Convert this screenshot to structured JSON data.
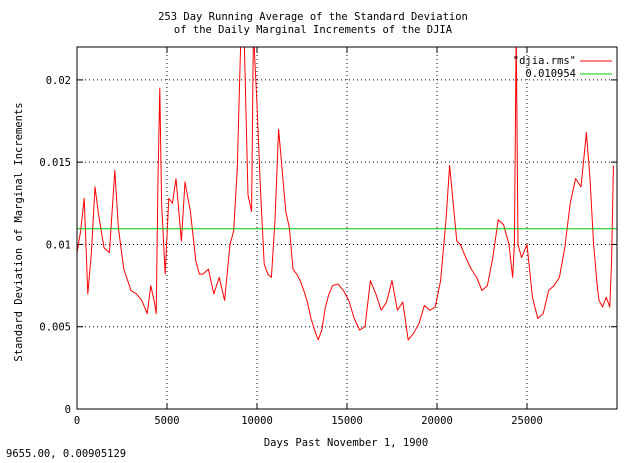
{
  "status_bar": {
    "coordinates": "9655.00,  0.00905129"
  },
  "chart_data": {
    "type": "line",
    "title": [
      "253 Day Running Average of the Standard Deviation",
      "of the Daily Marginal Increments of the DJIA"
    ],
    "xlabel": "Days Past November 1, 1900",
    "ylabel": "Standard Deviation of Marginal Increments",
    "xlim": [
      0,
      30000
    ],
    "ylim": [
      0,
      0.022
    ],
    "x_ticks": [
      0,
      5000,
      10000,
      15000,
      20000,
      25000
    ],
    "x_tick_labels": [
      "0",
      "5000",
      "10000",
      "15000",
      "20000",
      "25000"
    ],
    "y_ticks": [
      0,
      0.005,
      0.01,
      0.015,
      0.02
    ],
    "y_tick_labels": [
      "0",
      "0.005",
      "0.01",
      "0.015",
      "0.02"
    ],
    "grid": true,
    "legend_placement": "top-right",
    "series": [
      {
        "name": "\"djia.rms\"",
        "color": "#ff0000",
        "x": [
          0,
          200,
          400,
          600,
          800,
          1000,
          1200,
          1500,
          1800,
          2100,
          2300,
          2600,
          3000,
          3300,
          3600,
          3900,
          4100,
          4300,
          4400,
          4500,
          4600,
          4700,
          4900,
          5100,
          5300,
          5500,
          5800,
          6000,
          6300,
          6600,
          6800,
          7000,
          7300,
          7600,
          7900,
          8200,
          8500,
          8700,
          8900,
          9000,
          9100,
          9300,
          9500,
          9700,
          9800,
          10000,
          10200,
          10400,
          10600,
          10800,
          11000,
          11200,
          11400,
          11600,
          11800,
          12000,
          12200,
          12400,
          12600,
          12800,
          13000,
          13200,
          13400,
          13600,
          13800,
          14000,
          14200,
          14500,
          14800,
          15100,
          15400,
          15700,
          16000,
          16300,
          16600,
          16900,
          17200,
          17500,
          17800,
          18100,
          18400,
          18700,
          19000,
          19300,
          19600,
          19900,
          20200,
          20500,
          20700,
          20900,
          21100,
          21300,
          21600,
          21900,
          22200,
          22500,
          22800,
          23100,
          23400,
          23700,
          24000,
          24200,
          24300,
          24400,
          24500,
          24700,
          25000,
          25300,
          25600,
          25900,
          26200,
          26500,
          26800,
          27100,
          27400,
          27700,
          28000,
          28300,
          28500,
          28700,
          28900,
          29000,
          29200,
          29400,
          29600,
          29700,
          29800
        ],
        "y": [
          0.0095,
          0.0108,
          0.0128,
          0.007,
          0.0095,
          0.0135,
          0.0118,
          0.0098,
          0.0095,
          0.0145,
          0.011,
          0.0085,
          0.0072,
          0.007,
          0.0066,
          0.0058,
          0.0075,
          0.0065,
          0.0058,
          0.014,
          0.0195,
          0.0125,
          0.0082,
          0.0128,
          0.0125,
          0.014,
          0.0102,
          0.0138,
          0.012,
          0.009,
          0.0082,
          0.0082,
          0.0085,
          0.007,
          0.008,
          0.0066,
          0.01,
          0.0108,
          0.0145,
          0.0185,
          0.0225,
          0.022,
          0.013,
          0.012,
          0.023,
          0.0185,
          0.0132,
          0.0088,
          0.0082,
          0.008,
          0.0115,
          0.017,
          0.0145,
          0.012,
          0.011,
          0.0085,
          0.0082,
          0.0078,
          0.0072,
          0.0065,
          0.0055,
          0.0048,
          0.0042,
          0.0048,
          0.0062,
          0.007,
          0.0075,
          0.0076,
          0.0072,
          0.0066,
          0.0055,
          0.0048,
          0.005,
          0.0078,
          0.007,
          0.006,
          0.0065,
          0.0078,
          0.006,
          0.0065,
          0.0042,
          0.0046,
          0.0052,
          0.0063,
          0.006,
          0.0062,
          0.0078,
          0.0115,
          0.0148,
          0.0125,
          0.0102,
          0.01,
          0.0092,
          0.0085,
          0.008,
          0.0072,
          0.0075,
          0.0092,
          0.0115,
          0.0112,
          0.01,
          0.008,
          0.01,
          0.023,
          0.01,
          0.0092,
          0.01,
          0.0068,
          0.0055,
          0.0058,
          0.0072,
          0.0075,
          0.008,
          0.0098,
          0.0125,
          0.014,
          0.0135,
          0.0168,
          0.014,
          0.01,
          0.0075,
          0.0066,
          0.0062,
          0.0068,
          0.0062,
          0.009,
          0.0148
        ]
      },
      {
        "name": "0.010954",
        "color": "#00cc00",
        "x": [
          0,
          30000
        ],
        "y": [
          0.010954,
          0.010954
        ]
      }
    ]
  }
}
